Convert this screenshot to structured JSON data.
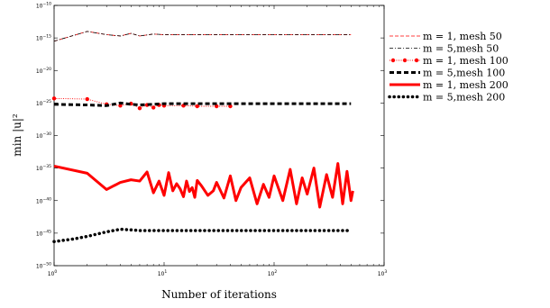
{
  "chart_data": {
    "type": "line",
    "xlabel": "Number of iterations",
    "ylabel": "min |u|²",
    "xscale": "log",
    "yscale": "log",
    "xlim": [
      1,
      1000
    ],
    "ylim": [
      1e-50,
      1e-10
    ],
    "x_ticks": [
      {
        "value": 1,
        "base": "10",
        "exp": "0"
      },
      {
        "value": 10,
        "base": "10",
        "exp": "1"
      },
      {
        "value": 100,
        "base": "10",
        "exp": "2"
      },
      {
        "value": 1000,
        "base": "10",
        "exp": "3"
      }
    ],
    "y_ticks": [
      {
        "value": -10,
        "base": "10",
        "exp": "−10"
      },
      {
        "value": -15,
        "base": "10",
        "exp": "−15"
      },
      {
        "value": -20,
        "base": "10",
        "exp": "−20"
      },
      {
        "value": -25,
        "base": "10",
        "exp": "−25"
      },
      {
        "value": -30,
        "base": "10",
        "exp": "−30"
      },
      {
        "value": -35,
        "base": "10",
        "exp": "−35"
      },
      {
        "value": -40,
        "base": "10",
        "exp": "−40"
      },
      {
        "value": -45,
        "base": "10",
        "exp": "−45"
      },
      {
        "value": -50,
        "base": "10",
        "exp": "−50"
      }
    ],
    "legend_position": "outside-right",
    "series": [
      {
        "name": "m = 1, mesh 50",
        "legend_label": "m = 1,  mesh 50",
        "color": "#ff0000",
        "style": "dashed",
        "x": [
          1,
          2,
          3,
          4,
          5,
          6,
          8,
          10,
          20,
          50,
          100,
          200,
          500
        ],
        "log10_y": [
          -15.5,
          -14.0,
          -14.5,
          -14.7,
          -14.3,
          -14.7,
          -14.4,
          -14.5,
          -14.5,
          -14.5,
          -14.5,
          -14.5,
          -14.5
        ]
      },
      {
        "name": "m = 5,mesh 50",
        "legend_label": "m = 5,mesh 50",
        "color": "#000000",
        "style": "dash-dot",
        "x": [
          1,
          2,
          3,
          4,
          5,
          6,
          8,
          10,
          20,
          50,
          100,
          200,
          500
        ],
        "log10_y": [
          -15.5,
          -14.0,
          -14.5,
          -14.7,
          -14.3,
          -14.7,
          -14.4,
          -14.5,
          -14.5,
          -14.5,
          -14.5,
          -14.5,
          -14.5
        ]
      },
      {
        "name": "m = 1, mesh 100",
        "legend_label": "m = 1,  mesh 100",
        "color": "#ff0000",
        "style": "dotted-markers",
        "x": [
          1,
          2,
          3,
          4,
          5,
          6,
          7,
          8,
          9,
          10,
          15,
          20,
          30,
          40
        ],
        "log10_y": [
          -24.3,
          -24.4,
          -25.2,
          -25.4,
          -25.1,
          -25.8,
          -25.3,
          -25.7,
          -25.3,
          -25.4,
          -25.4,
          -25.5,
          -25.5,
          -25.5
        ]
      },
      {
        "name": "m = 5,mesh 100",
        "legend_label": "m = 5,mesh 100",
        "color": "#000000",
        "style": "thick-dashed",
        "x": [
          1,
          2,
          3,
          4,
          5,
          6,
          8,
          10,
          20,
          50,
          100,
          200,
          500
        ],
        "log10_y": [
          -25.2,
          -25.3,
          -25.4,
          -25.0,
          -25.2,
          -25.3,
          -25.2,
          -25.1,
          -25.1,
          -25.1,
          -25.1,
          -25.1,
          -25.1
        ]
      },
      {
        "name": "m = 1, mesh 200",
        "legend_label": "m = 1,  mesh 200",
        "color": "#ff0000",
        "style": "thick-solid",
        "x": [
          1,
          2,
          3,
          4,
          5,
          6,
          7,
          8,
          9,
          10,
          11,
          12,
          13,
          14,
          15,
          16,
          17,
          18,
          19,
          20,
          22,
          25,
          28,
          30,
          35,
          40,
          45,
          50,
          60,
          70,
          80,
          90,
          100,
          120,
          140,
          160,
          180,
          200,
          230,
          260,
          300,
          340,
          380,
          420,
          460,
          500,
          520
        ],
        "log10_y": [
          -34.7,
          -35.8,
          -38.3,
          -37.2,
          -36.8,
          -37.0,
          -35.6,
          -38.8,
          -37.0,
          -39.2,
          -35.7,
          -38.5,
          -37.4,
          -38.2,
          -39.4,
          -37.0,
          -38.6,
          -38.0,
          -39.5,
          -36.9,
          -37.8,
          -39.2,
          -38.5,
          -37.2,
          -39.6,
          -36.2,
          -40.0,
          -38.0,
          -36.5,
          -40.5,
          -37.5,
          -39.5,
          -36.2,
          -40.0,
          -35.2,
          -40.5,
          -36.5,
          -39.0,
          -35.0,
          -41.0,
          -36.0,
          -39.5,
          -34.3,
          -40.5,
          -35.5,
          -40.0,
          -38.5
        ]
      },
      {
        "name": "m = 5,mesh 200",
        "legend_label": "m = 5,mesh 200",
        "color": "#000000",
        "style": "thick-dotted",
        "x": [
          1,
          1.5,
          2,
          3,
          4,
          5,
          6,
          8,
          10,
          20,
          50,
          100,
          200,
          500
        ],
        "log10_y": [
          -46.3,
          -45.9,
          -45.5,
          -44.8,
          -44.4,
          -44.5,
          -44.6,
          -44.6,
          -44.6,
          -44.6,
          -44.6,
          -44.6,
          -44.6,
          -44.6
        ]
      }
    ]
  }
}
